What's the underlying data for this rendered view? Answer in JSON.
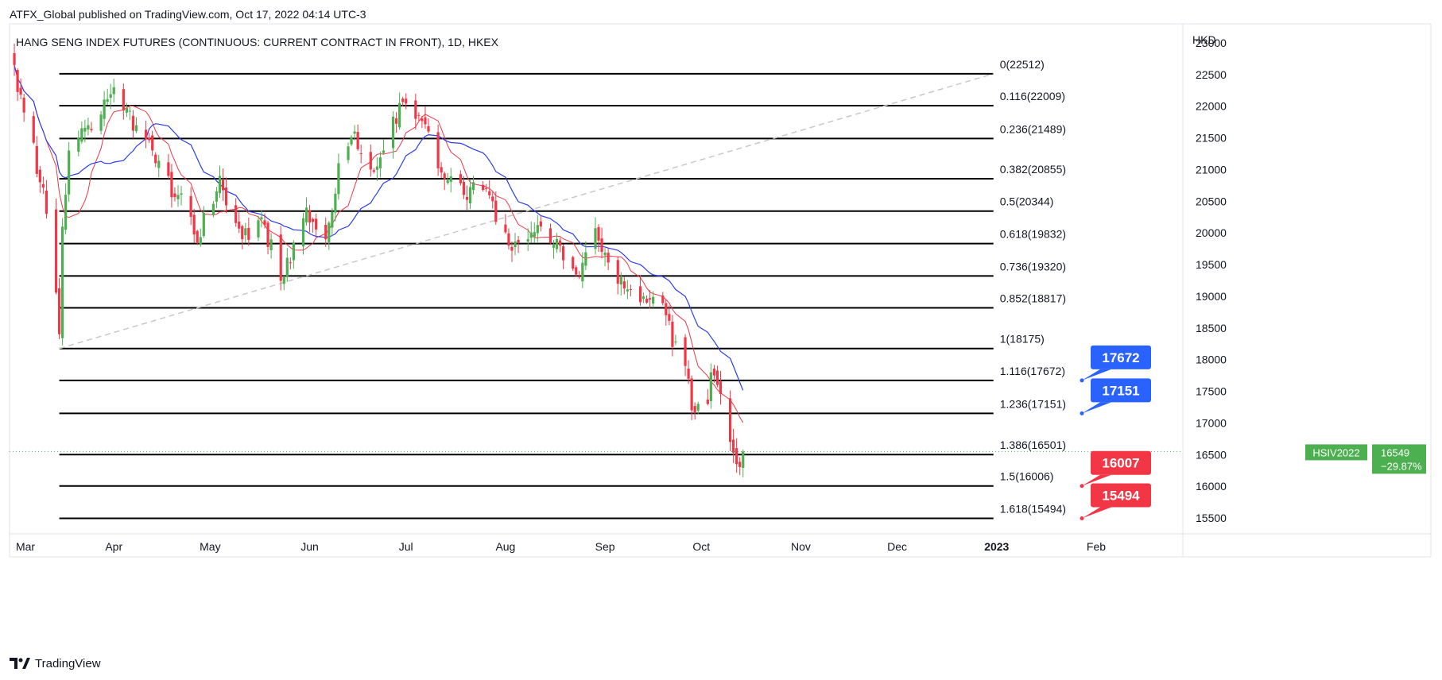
{
  "header": {
    "published_by": "ATFX_Global published on TradingView.com, Oct 17, 2022 04:14 UTC-3"
  },
  "footer": {
    "brand": "TradingView"
  },
  "colors": {
    "up": "#4caf50",
    "down": "#f23645",
    "ma_fast": "#f23645",
    "ma_slow": "#2b3cf0",
    "bubble_up": "#2962ff",
    "bubble_down": "#f23645",
    "tag_bg": "#4caf50",
    "fib_line": "#000000",
    "trend_line": "#c8c8c8"
  },
  "chart_data": {
    "type": "candlestick",
    "title": "HANG SENG INDEX FUTURES (CONTINUOUS: CURRENT CONTRACT IN FRONT), 1D, HKEX",
    "currency": "HKD",
    "y_ticks": [
      15500,
      16000,
      16500,
      17000,
      17500,
      18000,
      18500,
      19000,
      19500,
      20000,
      20500,
      21000,
      21500,
      22000,
      22500,
      23000
    ],
    "x_ticks": [
      "Mar",
      "Apr",
      "May",
      "Jun",
      "Jul",
      "Aug",
      "Sep",
      "Oct",
      "Nov",
      "Dec",
      "2023",
      "Feb"
    ],
    "x_range": [
      "2022-02-28",
      "2023-02-28"
    ],
    "ylim": [
      15250,
      23300
    ],
    "symbol_tag": {
      "name": "HSIV2022",
      "price": "16549",
      "change": "−29.87%",
      "last_price": 16549
    },
    "fib_levels": [
      {
        "label": "0(22512)",
        "price": 22512
      },
      {
        "label": "0.116(22009)",
        "price": 22009
      },
      {
        "label": "0.236(21489)",
        "price": 21489
      },
      {
        "label": "0.382(20855)",
        "price": 20855
      },
      {
        "label": "0.5(20344)",
        "price": 20344
      },
      {
        "label": "0.618(19832)",
        "price": 19832
      },
      {
        "label": "0.736(19320)",
        "price": 19320
      },
      {
        "label": "0.852(18817)",
        "price": 18817
      },
      {
        "label": "1(18175)",
        "price": 18175
      },
      {
        "label": "1.116(17672)",
        "price": 17672
      },
      {
        "label": "1.236(17151)",
        "price": 17151
      },
      {
        "label": "1.386(16501)",
        "price": 16501
      },
      {
        "label": "1.5(16006)",
        "price": 16006
      },
      {
        "label": "1.618(15494)",
        "price": 15494
      }
    ],
    "fib_range": {
      "start": "2022-03-15",
      "end": "2022-12-31"
    },
    "trend_line": {
      "start": {
        "date": "2022-03-15",
        "price": 18175
      },
      "end": {
        "date": "2022-12-31",
        "price": 22512
      }
    },
    "price_bubbles": [
      {
        "text": "17672",
        "price": 17672,
        "kind": "up"
      },
      {
        "text": "17151",
        "price": 17151,
        "kind": "up"
      },
      {
        "text": "16007",
        "price": 16006,
        "kind": "down"
      },
      {
        "text": "15494",
        "price": 15494,
        "kind": "down"
      }
    ],
    "anchors": [
      {
        "date": "2022-03-01",
        "price": 22650
      },
      {
        "date": "2022-03-04",
        "price": 21900
      },
      {
        "date": "2022-03-09",
        "price": 20800
      },
      {
        "date": "2022-03-11",
        "price": 20300
      },
      {
        "date": "2022-03-15",
        "price": 18400
      },
      {
        "date": "2022-03-16",
        "price": 20100
      },
      {
        "date": "2022-03-18",
        "price": 21300
      },
      {
        "date": "2022-03-24",
        "price": 21700
      },
      {
        "date": "2022-04-01",
        "price": 22300
      },
      {
        "date": "2022-04-08",
        "price": 21700
      },
      {
        "date": "2022-04-14",
        "price": 21100
      },
      {
        "date": "2022-04-21",
        "price": 20600
      },
      {
        "date": "2022-04-27",
        "price": 19850
      },
      {
        "date": "2022-05-04",
        "price": 20900
      },
      {
        "date": "2022-05-11",
        "price": 19900
      },
      {
        "date": "2022-05-16",
        "price": 20200
      },
      {
        "date": "2022-05-24",
        "price": 19300
      },
      {
        "date": "2022-05-31",
        "price": 20400
      },
      {
        "date": "2022-06-06",
        "price": 19900
      },
      {
        "date": "2022-06-10",
        "price": 21100
      },
      {
        "date": "2022-06-15",
        "price": 21600
      },
      {
        "date": "2022-06-20",
        "price": 21000
      },
      {
        "date": "2022-06-24",
        "price": 21300
      },
      {
        "date": "2022-06-29",
        "price": 22050
      },
      {
        "date": "2022-07-04",
        "price": 21800
      },
      {
        "date": "2022-07-08",
        "price": 21600
      },
      {
        "date": "2022-07-13",
        "price": 20850
      },
      {
        "date": "2022-07-19",
        "price": 20600
      },
      {
        "date": "2022-07-22",
        "price": 20800
      },
      {
        "date": "2022-07-28",
        "price": 20500
      },
      {
        "date": "2022-08-02",
        "price": 19800
      },
      {
        "date": "2022-08-08",
        "price": 19900
      },
      {
        "date": "2022-08-12",
        "price": 20100
      },
      {
        "date": "2022-08-18",
        "price": 19800
      },
      {
        "date": "2022-08-24",
        "price": 19300
      },
      {
        "date": "2022-08-27",
        "price": 20100
      },
      {
        "date": "2022-08-31",
        "price": 19700
      },
      {
        "date": "2022-09-06",
        "price": 19300
      },
      {
        "date": "2022-09-09",
        "price": 19100
      },
      {
        "date": "2022-09-14",
        "price": 18900
      },
      {
        "date": "2022-09-20",
        "price": 18700
      },
      {
        "date": "2022-09-22",
        "price": 18200
      },
      {
        "date": "2022-09-26",
        "price": 17900
      },
      {
        "date": "2022-09-28",
        "price": 17200
      },
      {
        "date": "2022-09-30",
        "price": 17300
      },
      {
        "date": "2022-10-03",
        "price": 17300
      },
      {
        "date": "2022-10-04",
        "price": 17800
      },
      {
        "date": "2022-10-06",
        "price": 17600
      },
      {
        "date": "2022-10-10",
        "price": 16700
      },
      {
        "date": "2022-10-12",
        "price": 16350
      },
      {
        "date": "2022-10-14",
        "price": 16549
      }
    ]
  }
}
